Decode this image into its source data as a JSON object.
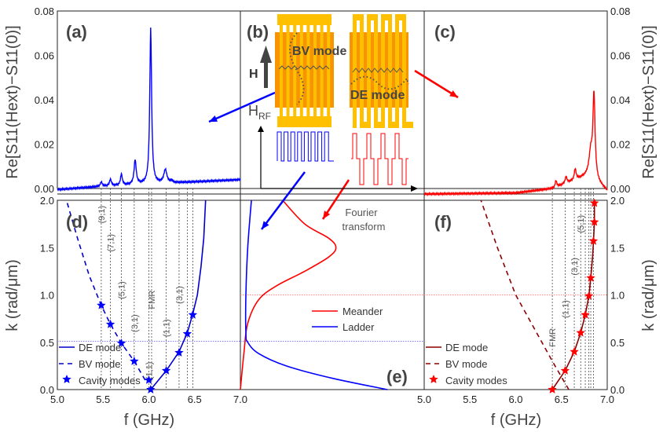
{
  "chart_data": [
    {
      "panel": "(a)",
      "type": "line",
      "color": "#0000ff",
      "xlim": [
        5.0,
        7.0
      ],
      "ylim": [
        0.0,
        0.08
      ],
      "yticks": [
        "0.00",
        "0.02",
        "0.04",
        "0.06",
        "0.08"
      ],
      "ylabel": "Re[S11(Hext)−S11(0)]",
      "baseline": [
        [
          5.0,
          -0.0005
        ],
        [
          5.5,
          0.001
        ],
        [
          6.0,
          0.002
        ],
        [
          6.5,
          0.003
        ],
        [
          7.0,
          0.004
        ]
      ],
      "peaks": [
        [
          5.48,
          0.002,
          0.012
        ],
        [
          5.58,
          0.003,
          0.012
        ],
        [
          5.7,
          0.005,
          0.012
        ],
        [
          5.85,
          0.011,
          0.014
        ],
        [
          6.02,
          0.07,
          0.012
        ],
        [
          6.18,
          0.006,
          0.02
        ],
        [
          6.25,
          0.001,
          0.01
        ]
      ]
    },
    {
      "panel": "(b)",
      "type": "diagram",
      "labels": {
        "bv": "BV mode",
        "de": "DE mode",
        "h": "H",
        "hrf": "H",
        "hrf_sub": "RF"
      },
      "colors": {
        "pad": "#ffc000",
        "film": "#f79400",
        "ladder": "#0000ff",
        "meander": "#ff0000"
      }
    },
    {
      "panel": "(c)",
      "type": "line",
      "color": "#ff0000",
      "xlim": [
        5.0,
        7.0
      ],
      "ylim": [
        0.0,
        0.08
      ],
      "yticks": [
        "0.00",
        "0.02",
        "0.04",
        "0.06",
        "0.08"
      ],
      "ylabel": "Re[S11(Hext)−S11(0)]",
      "baseline": [
        [
          5.0,
          -0.0025
        ],
        [
          6.0,
          -0.002
        ],
        [
          6.4,
          0.0
        ],
        [
          6.8,
          0.006
        ],
        [
          7.0,
          -0.001
        ]
      ],
      "peaks": [
        [
          6.44,
          0.003,
          0.01
        ],
        [
          6.55,
          0.003,
          0.012
        ],
        [
          6.65,
          0.005,
          0.012
        ],
        [
          6.82,
          0.01,
          0.02
        ],
        [
          6.855,
          0.038,
          0.014
        ]
      ]
    },
    {
      "panel": "(d)",
      "type": "line",
      "xlim": [
        5.0,
        7.0
      ],
      "ylim": [
        0.0,
        2.0
      ],
      "xticks": [
        "5.0",
        "5.5",
        "6.0",
        "6.5",
        "7.0"
      ],
      "yticks": [
        "0.0",
        "0.5",
        "1.0",
        "1.5",
        "2.0"
      ],
      "xlabel": "f (GHz)",
      "ylabel": "k (rad/μm)",
      "color": "#0000cc",
      "guide_k": 0.51,
      "de_mode": [
        [
          6.02,
          0
        ],
        [
          6.19,
          0.2
        ],
        [
          6.33,
          0.4
        ],
        [
          6.42,
          0.6
        ],
        [
          6.48,
          0.8
        ],
        [
          6.53,
          1.0
        ],
        [
          6.57,
          1.3
        ],
        [
          6.6,
          1.6
        ],
        [
          6.62,
          2.0
        ]
      ],
      "bv_mode": [
        [
          5.96,
          0.1
        ],
        [
          5.84,
          0.3
        ],
        [
          5.7,
          0.49
        ],
        [
          5.58,
          0.69
        ],
        [
          5.48,
          0.89
        ],
        [
          5.35,
          1.2
        ],
        [
          5.22,
          1.6
        ],
        [
          5.1,
          2.0
        ]
      ],
      "cavity_modes": [
        [
          6.02,
          0
        ],
        [
          6.19,
          0.2
        ],
        [
          6.33,
          0.39
        ],
        [
          6.42,
          0.59
        ],
        [
          6.48,
          0.79
        ],
        [
          6.0,
          0.1
        ],
        [
          5.84,
          0.3
        ],
        [
          5.7,
          0.49
        ],
        [
          5.58,
          0.69
        ],
        [
          5.48,
          0.89
        ]
      ],
      "mode_lines": [
        {
          "f": 5.48,
          "label": "(9,1)",
          "k": 1.85
        },
        {
          "f": 5.58,
          "label": "(7,1)",
          "k": 1.55
        },
        {
          "f": 5.7,
          "label": "(5,1)",
          "k": 1.05
        },
        {
          "f": 5.84,
          "label": "(3,1)",
          "k": 0.7
        },
        {
          "f": 6.0,
          "label": "(1,1)",
          "k": 0.2
        },
        {
          "f": 6.03,
          "label": "FMR",
          "k": 0.95
        },
        {
          "f": 6.19,
          "label": "(1,1)",
          "k": 0.65
        },
        {
          "f": 6.33,
          "label": "(3,1)",
          "k": 1.0
        },
        {
          "f": 6.42,
          "label": "",
          "k": 0
        },
        {
          "f": 6.48,
          "label": "",
          "k": 0
        }
      ],
      "legend": [
        "DE mode",
        "BV mode",
        "Cavity modes"
      ]
    },
    {
      "panel": "(e)",
      "type": "line",
      "xticks": [
        "7.0"
      ],
      "annotation": "Fourier transform",
      "series": [
        {
          "name": "Meander",
          "color": "#ff0000",
          "points": [
            [
              0,
              0
            ],
            [
              0.02,
              0.4
            ],
            [
              0.04,
              0.7
            ],
            [
              0.1,
              0.95
            ],
            [
              0.2,
              1.1
            ],
            [
              0.35,
              1.25
            ],
            [
              0.48,
              1.4
            ],
            [
              0.52,
              1.5
            ],
            [
              0.48,
              1.6
            ],
            [
              0.35,
              1.75
            ],
            [
              0.23,
              2.0
            ]
          ]
        },
        {
          "name": "Ladder",
          "color": "#0000ff",
          "points": [
            [
              0.8,
              0
            ],
            [
              0.5,
              0.12
            ],
            [
              0.25,
              0.25
            ],
            [
              0.1,
              0.38
            ],
            [
              0.04,
              0.5
            ],
            [
              0.03,
              0.6
            ],
            [
              0.03,
              1.0
            ],
            [
              0.04,
              1.5
            ],
            [
              0.06,
              2.0
            ]
          ]
        }
      ],
      "guide_k": [
        0.51,
        1.0
      ]
    },
    {
      "panel": "(f)",
      "type": "line",
      "xlim": [
        5.0,
        7.0
      ],
      "ylim": [
        0.0,
        2.0
      ],
      "xticks": [
        "5.0",
        "5.5",
        "6.0",
        "6.5",
        "7.0"
      ],
      "yticks": [
        "0.0",
        "0.5",
        "1.0",
        "1.5",
        "2.0"
      ],
      "xlabel": "f (GHz)",
      "ylabel": "k (rad/μm)",
      "color": "#8b0000",
      "star_color": "#ff0000",
      "guide_k": 1.0,
      "de_mode": [
        [
          6.4,
          0
        ],
        [
          6.54,
          0.2
        ],
        [
          6.64,
          0.4
        ],
        [
          6.71,
          0.6
        ],
        [
          6.76,
          0.79
        ],
        [
          6.8,
          0.99
        ],
        [
          6.82,
          1.18
        ],
        [
          6.84,
          1.4
        ],
        [
          6.85,
          1.57
        ],
        [
          6.86,
          1.77
        ],
        [
          6.86,
          2.0
        ]
      ],
      "bv_mode": [
        [
          6.58,
          0
        ],
        [
          6.4,
          0.3
        ],
        [
          6.2,
          0.65
        ],
        [
          6.0,
          1.0
        ],
        [
          5.8,
          1.5
        ],
        [
          5.62,
          2.0
        ]
      ],
      "cavity_modes": [
        [
          6.4,
          0
        ],
        [
          6.54,
          0.2
        ],
        [
          6.64,
          0.4
        ],
        [
          6.71,
          0.6
        ],
        [
          6.76,
          0.79
        ],
        [
          6.8,
          0.99
        ],
        [
          6.82,
          1.18
        ],
        [
          6.85,
          1.57
        ],
        [
          6.86,
          1.77
        ],
        [
          6.86,
          1.97
        ]
      ],
      "mode_lines": [
        {
          "f": 6.4,
          "label": "FMR",
          "k": 0.55
        },
        {
          "f": 6.54,
          "label": "(1,1)",
          "k": 0.85
        },
        {
          "f": 6.64,
          "label": "(3,1)",
          "k": 1.3
        },
        {
          "f": 6.71,
          "label": "(5,1)",
          "k": 1.75
        },
        {
          "f": 6.76,
          "label": "",
          "k": 0
        },
        {
          "f": 6.8,
          "label": "",
          "k": 0
        },
        {
          "f": 6.82,
          "label": "",
          "k": 0
        },
        {
          "f": 6.85,
          "label": "",
          "k": 0
        }
      ],
      "legend": [
        "DE mode",
        "BV mode",
        "Cavity modes"
      ]
    }
  ]
}
